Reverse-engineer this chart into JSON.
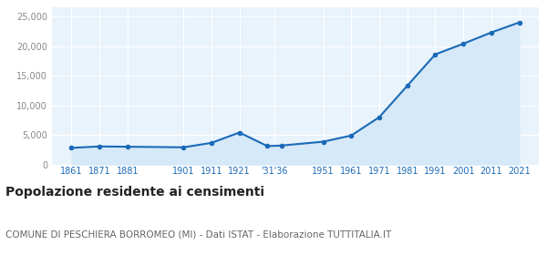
{
  "years": [
    1861,
    1871,
    1881,
    1901,
    1911,
    1921,
    1931,
    1936,
    1951,
    1961,
    1971,
    1981,
    1991,
    2001,
    2011,
    2021
  ],
  "population": [
    2800,
    3050,
    3000,
    2900,
    3650,
    5400,
    3100,
    3200,
    3850,
    4900,
    8000,
    13300,
    18600,
    20400,
    22300,
    24000
  ],
  "line_color": "#1a6ab8",
  "fill_color": "#d6e9f8",
  "marker_color": "#1a6ab8",
  "background_color": "#ffffff",
  "plot_bg_color": "#e8f3fb",
  "grid_color": "#ffffff",
  "ylim": [
    0,
    26500
  ],
  "yticks": [
    0,
    5000,
    10000,
    15000,
    20000,
    25000
  ],
  "title": "Popolazione residente ai censimenti",
  "subtitle": "COMUNE DI PESCHIERA BORROMEO (MI) - Dati ISTAT - Elaborazione TUTTITALIA.IT",
  "title_fontsize": 10,
  "subtitle_fontsize": 7.5,
  "x_tick_color": "#1a6ab8",
  "y_tick_color": "#888888",
  "tick_fontsize": 7,
  "xlim": [
    1854,
    2028
  ]
}
